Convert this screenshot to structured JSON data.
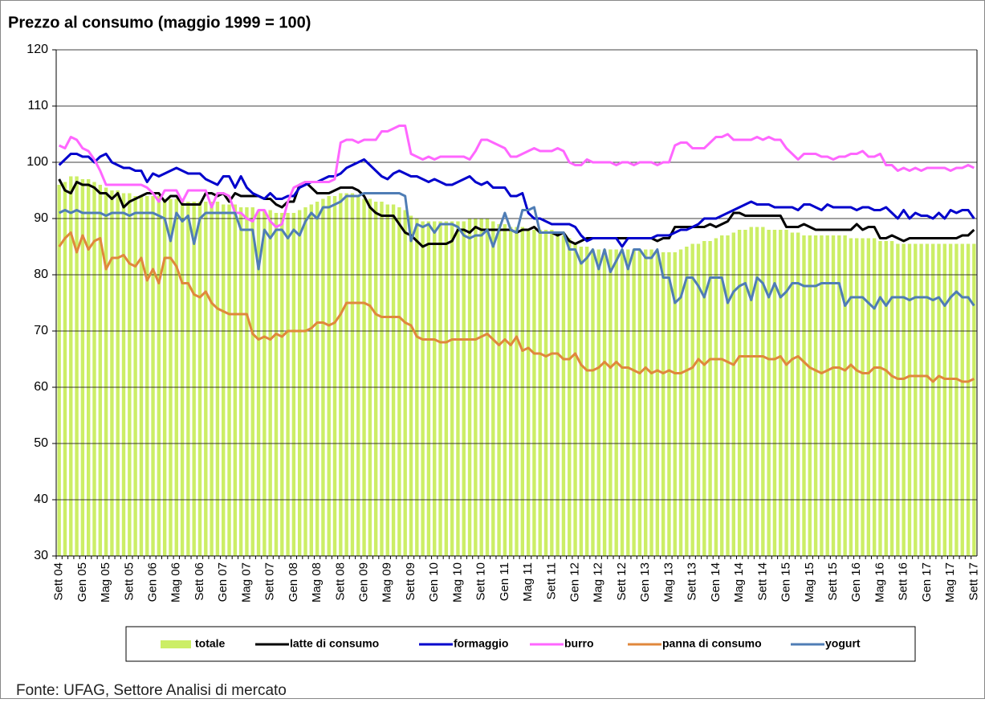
{
  "chart_data": {
    "type": "bar",
    "title": "Prezzo al consumo (maggio 1999 = 100)",
    "source": "Fonte: UFAG, Settore Analisi di mercato",
    "ylim": [
      30,
      120
    ],
    "yticks": [
      30,
      40,
      50,
      60,
      70,
      80,
      90,
      100,
      110,
      120
    ],
    "grid": true,
    "legend": "bottom",
    "categories": [
      "Sett 04",
      null,
      null,
      null,
      "Gen 05",
      null,
      null,
      null,
      "Mag 05",
      null,
      null,
      null,
      "Sett 05",
      null,
      null,
      null,
      "Gen 06",
      null,
      null,
      null,
      "Mag 06",
      null,
      null,
      null,
      "Sett 06",
      null,
      null,
      null,
      "Gen 07",
      null,
      null,
      null,
      "Mag 07",
      null,
      null,
      null,
      "Sett 07",
      null,
      null,
      null,
      "Gen 08",
      null,
      null,
      null,
      "Mag 08",
      null,
      null,
      null,
      "Sett 08",
      null,
      null,
      null,
      "Gen 09",
      null,
      null,
      null,
      "Mag 09",
      null,
      null,
      null,
      "Sett 09",
      null,
      null,
      null,
      "Gen 10",
      null,
      null,
      null,
      "Mag 10",
      null,
      null,
      null,
      "Sett 10",
      null,
      null,
      null,
      "Gen 11",
      null,
      null,
      null,
      "Mag 11",
      null,
      null,
      null,
      "Sett 11",
      null,
      null,
      null,
      "Gen 12",
      null,
      null,
      null,
      "Mag 12",
      null,
      null,
      null,
      "Sett 12",
      null,
      null,
      null,
      "Gen 13",
      null,
      null,
      null,
      "Mag 13",
      null,
      null,
      null,
      "Sett 13",
      null,
      null,
      null,
      "Gen 14",
      null,
      null,
      null,
      "Mag 14",
      null,
      null,
      null,
      "Sett 14",
      null,
      null,
      null,
      "Gen 15",
      null,
      null,
      null,
      "Mag 15",
      null,
      null,
      null,
      "Sett 15",
      null,
      null,
      null,
      "Gen 16",
      null,
      null,
      null,
      "Mag 16",
      null,
      null,
      null,
      "Sett 16",
      null,
      null,
      null,
      "Gen 17",
      null,
      null,
      null,
      "Mag 17",
      null,
      null,
      null,
      "Sett 17"
    ],
    "series": [
      {
        "name": "totale",
        "type": "bar",
        "color": "#ccee66",
        "values": [
          96,
          96.5,
          97.5,
          97.5,
          97,
          97,
          96.5,
          96,
          95.5,
          95,
          95,
          94.5,
          94.5,
          94,
          94,
          94,
          94,
          94,
          93.5,
          93.5,
          93.5,
          93.5,
          93,
          93,
          93,
          93,
          93,
          93,
          92.5,
          92.5,
          92.5,
          92,
          92,
          92,
          91.5,
          91.5,
          91.5,
          91,
          91,
          91,
          91,
          91.5,
          92,
          92.5,
          93,
          93.5,
          94,
          94,
          94.5,
          94.5,
          94.5,
          94,
          93.5,
          93.5,
          93,
          93,
          92.5,
          92.5,
          92,
          91.5,
          90.5,
          90,
          89.5,
          89.5,
          89.5,
          89.5,
          89.5,
          89.5,
          89.5,
          89.5,
          90,
          90,
          90,
          90,
          89.5,
          89,
          89,
          88.5,
          88.5,
          88.5,
          88,
          88,
          88,
          88,
          88,
          87.5,
          87,
          86.5,
          85.5,
          85,
          85,
          84.5,
          84.5,
          84.5,
          84.5,
          84.5,
          84.5,
          84.5,
          84.5,
          84.5,
          84.5,
          84.5,
          84,
          84,
          84,
          84,
          84.5,
          85,
          85.5,
          85.5,
          86,
          86,
          86.5,
          87,
          87,
          87.5,
          88,
          88,
          88.5,
          88.5,
          88.5,
          88,
          88,
          88,
          88,
          87.5,
          87.5,
          87,
          87,
          87,
          87,
          87,
          87,
          87,
          87,
          86.5,
          86.5,
          86.5,
          86.5,
          86.5,
          86,
          86,
          86,
          85.5,
          85.5,
          85.5,
          85.5,
          85.5,
          85.5,
          85.5,
          85.5,
          85.5,
          85.5,
          85.5,
          85.5,
          85.5,
          85.5
        ]
      },
      {
        "name": "latte di consumo",
        "type": "line",
        "color": "#000000",
        "values": [
          97,
          95,
          94.5,
          96.5,
          96,
          96,
          95.5,
          94.5,
          94.5,
          93.5,
          94.5,
          92,
          93,
          93.5,
          94,
          94.5,
          94.5,
          94.5,
          93,
          94,
          94,
          92.5,
          92.5,
          92.5,
          92.5,
          94.5,
          94.5,
          94,
          94.5,
          93,
          94.5,
          94,
          94,
          94,
          94,
          93.5,
          93.5,
          92.5,
          92,
          93,
          93,
          96,
          96.5,
          95.5,
          94.5,
          94.5,
          94.5,
          95,
          95.5,
          95.5,
          95.5,
          95,
          94,
          92,
          91,
          90.5,
          90.5,
          90.5,
          89,
          87.5,
          87,
          86,
          85,
          85.5,
          85.5,
          85.5,
          85.5,
          86,
          88,
          88,
          87.5,
          88.5,
          88,
          88,
          88,
          88,
          88,
          88,
          87.5,
          88,
          88,
          88.5,
          87.5,
          87.5,
          87.5,
          87,
          87.5,
          86,
          85.5,
          86,
          86.5,
          86.5,
          86.5,
          86.5,
          86.5,
          86.5,
          86.5,
          86.5,
          86.5,
          86.5,
          86.5,
          86.5,
          86,
          86.5,
          86.5,
          88.5,
          88.5,
          88.5,
          88.5,
          88.5,
          88.5,
          89,
          88.5,
          89,
          89.5,
          91,
          91,
          90.5,
          90.5,
          90.5,
          90.5,
          90.5,
          90.5,
          90.5,
          88.5,
          88.5,
          88.5,
          89,
          88.5,
          88,
          88,
          88,
          88,
          88,
          88,
          88,
          89,
          88,
          88.5,
          88.5,
          86.5,
          86.5,
          87,
          86.5,
          86,
          86.5,
          86.5,
          86.5,
          86.5,
          86.5,
          86.5,
          86.5,
          86.5,
          86.5,
          87,
          87,
          88
        ]
      },
      {
        "name": "formaggio",
        "type": "line",
        "color": "#0000cc",
        "values": [
          99.5,
          100.5,
          101.5,
          101.5,
          101,
          101,
          100,
          101,
          101.5,
          100,
          99.5,
          99,
          99,
          98.5,
          98.5,
          96.5,
          98,
          97.5,
          98,
          98.5,
          99,
          98.5,
          98,
          98,
          98,
          97,
          96.5,
          96,
          97.5,
          97.5,
          95.5,
          97.5,
          95.5,
          94.5,
          94,
          93.5,
          94.5,
          93.5,
          93.5,
          94,
          94,
          95.5,
          96,
          96.5,
          96.5,
          97,
          97.5,
          97.5,
          98,
          99,
          99.5,
          100,
          100.5,
          99.5,
          98.5,
          97.5,
          97,
          98,
          98.5,
          98,
          97.5,
          97.5,
          97,
          96.5,
          97,
          96.5,
          96,
          96,
          96.5,
          97,
          97.5,
          96.5,
          96,
          96.5,
          95.5,
          95.5,
          95.5,
          94,
          94,
          94.5,
          91,
          90,
          90,
          89.5,
          89,
          89,
          89,
          89,
          88.5,
          87,
          86,
          86.5,
          86.5,
          86.5,
          86.5,
          86.5,
          85,
          86.5,
          86.5,
          86.5,
          86.5,
          86.5,
          87,
          87,
          87,
          87.5,
          88,
          88,
          88.5,
          89,
          90,
          90,
          90,
          90.5,
          91,
          91.5,
          92,
          92.5,
          93,
          92.5,
          92.5,
          92.5,
          92,
          92,
          92,
          92,
          91.5,
          92.5,
          92.5,
          92,
          91.5,
          92.5,
          92,
          92,
          92,
          92,
          91.5,
          92,
          92,
          91.5,
          91.5,
          92,
          91,
          90,
          91.5,
          90,
          91,
          90.5,
          90.5,
          90,
          91,
          90,
          91.5,
          91,
          91.5,
          91.5,
          90
        ]
      },
      {
        "name": "burro",
        "type": "line",
        "color": "#ff66ff",
        "values": [
          103,
          102.5,
          104.5,
          104,
          102.5,
          102,
          100.5,
          98.5,
          96,
          96,
          96,
          96,
          96,
          96,
          96,
          95.5,
          94.5,
          93,
          95,
          95,
          95,
          93,
          95,
          95,
          95,
          95,
          92,
          94.5,
          94.5,
          94,
          91,
          91,
          90,
          89.5,
          91.5,
          91.5,
          89.5,
          88.5,
          89,
          93,
          95.5,
          96,
          96.5,
          96.5,
          96.5,
          96.5,
          96.5,
          97,
          103.5,
          104,
          104,
          103.5,
          104,
          104,
          104,
          105.5,
          105.5,
          106,
          106.5,
          106.5,
          101.5,
          101,
          100.5,
          101,
          100.5,
          101,
          101,
          101,
          101,
          101,
          100.5,
          102,
          104,
          104,
          103.5,
          103,
          102.5,
          101,
          101,
          101.5,
          102,
          102.5,
          102,
          102,
          102,
          102.5,
          102,
          100,
          99.5,
          99.5,
          100.5,
          100,
          100,
          100,
          100,
          99.5,
          100,
          100,
          99.5,
          100,
          100,
          100,
          99.5,
          100,
          100,
          103,
          103.5,
          103.5,
          102.5,
          102.5,
          102.5,
          103.5,
          104.5,
          104.5,
          105,
          104,
          104,
          104,
          104,
          104.5,
          104,
          104.5,
          104,
          104,
          102.5,
          101.5,
          100.5,
          101.5,
          101.5,
          101.5,
          101,
          101,
          100.5,
          101,
          101,
          101.5,
          101.5,
          102,
          101,
          101,
          101.5,
          99.5,
          99.5,
          98.5,
          99,
          98.5,
          99,
          98.5,
          99,
          99,
          99,
          99,
          98.5,
          99,
          99,
          99.5,
          99
        ]
      },
      {
        "name": "panna di consumo",
        "type": "line",
        "color": "#e0883c",
        "values": [
          85,
          86.5,
          87.5,
          84,
          87,
          84.5,
          86,
          86.5,
          81,
          83,
          83,
          83.5,
          82,
          81.5,
          83,
          79,
          81,
          78.5,
          83,
          83,
          81.5,
          78.5,
          78.5,
          76.5,
          76,
          77,
          75,
          74,
          73.5,
          73,
          73,
          73,
          73,
          69.5,
          68.5,
          69,
          68.5,
          69.5,
          69,
          70,
          70,
          70,
          70,
          70.5,
          71.5,
          71.5,
          71,
          71.5,
          73,
          75,
          75,
          75,
          75,
          74.5,
          73,
          72.5,
          72.5,
          72.5,
          72.5,
          71.5,
          71,
          69,
          68.5,
          68.5,
          68.5,
          68,
          68,
          68.5,
          68.5,
          68.5,
          68.5,
          68.5,
          69,
          69.5,
          68.5,
          67.5,
          68.5,
          67.5,
          69,
          66.5,
          67,
          66,
          66,
          65.5,
          66,
          66,
          65,
          65,
          66,
          64,
          63,
          63,
          63.5,
          64.5,
          63.5,
          64.5,
          63.5,
          63.5,
          63,
          62.5,
          63.5,
          62.5,
          63,
          62.5,
          63,
          62.5,
          62.5,
          63,
          63.5,
          65,
          64,
          65,
          65,
          65,
          64.5,
          64,
          65.5,
          65.5,
          65.5,
          65.5,
          65.5,
          65,
          65,
          65.5,
          64,
          65,
          65.5,
          64.5,
          63.5,
          63,
          62.5,
          63,
          63.5,
          63.5,
          63,
          64,
          63,
          62.5,
          62.5,
          63.5,
          63.5,
          63,
          62,
          61.5,
          61.5,
          62,
          62,
          62,
          62,
          61,
          62,
          61.5,
          61.5,
          61.5,
          61,
          61,
          61.5
        ]
      },
      {
        "name": "yogurt",
        "type": "line",
        "color": "#4f7db5",
        "values": [
          91,
          91.5,
          91,
          91.5,
          91,
          91,
          91,
          91,
          90.5,
          91,
          91,
          91,
          90.5,
          91,
          91,
          91,
          91,
          90.5,
          90,
          86,
          91,
          89.5,
          90.5,
          85.5,
          90,
          91,
          91,
          91,
          91,
          91,
          91,
          88,
          88,
          88,
          81,
          88,
          86.5,
          88,
          88,
          86.5,
          88,
          87,
          89.5,
          91,
          90,
          92,
          92,
          92.5,
          93,
          94,
          94,
          94,
          94.5,
          94.5,
          94.5,
          94.5,
          94.5,
          94.5,
          94.5,
          94,
          86,
          89,
          88.5,
          89,
          87.5,
          89,
          89,
          89,
          88.5,
          87,
          86.5,
          87,
          87,
          88,
          85,
          88,
          91,
          88,
          87.5,
          91.5,
          91.5,
          92,
          87.5,
          87.5,
          87.5,
          87.5,
          87.5,
          84.5,
          84.5,
          82,
          83,
          84.5,
          81,
          84.5,
          80.5,
          82.5,
          84.5,
          81,
          84.5,
          84.5,
          83,
          83,
          84.5,
          79.5,
          79.5,
          75,
          76,
          79.5,
          79.5,
          78,
          76,
          79.5,
          79.5,
          79.5,
          75,
          77,
          78,
          78.5,
          75.5,
          79.5,
          78.5,
          76,
          78.5,
          76,
          77,
          78.5,
          78.5,
          78,
          78,
          78,
          78.5,
          78.5,
          78.5,
          78.5,
          74.5,
          76,
          76,
          76,
          75,
          74,
          76,
          74.5,
          76,
          76,
          76,
          75.5,
          76,
          76,
          76,
          75.5,
          76,
          74.5,
          76,
          77,
          76,
          76,
          74.5
        ]
      }
    ]
  }
}
